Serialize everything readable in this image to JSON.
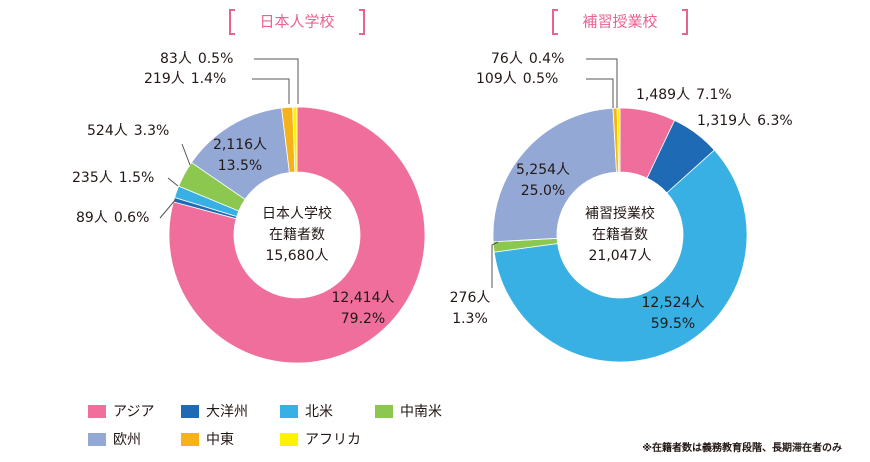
{
  "chart_data": [
    {
      "type": "pie",
      "title": "日本人学校",
      "center_label": [
        "日本人学校",
        "在籍者数",
        "15,680人"
      ],
      "categories": [
        "アジア",
        "大洋州",
        "北米",
        "中南米",
        "欧州",
        "中東",
        "アフリカ"
      ],
      "colors": [
        "#f06e9b",
        "#1e6ab4",
        "#38b0e4",
        "#8cc850",
        "#94a8d6",
        "#f5b21a",
        "#fff200"
      ],
      "values": [
        12414,
        89,
        235,
        524,
        2116,
        219,
        83
      ],
      "value_labels": [
        "12,414人",
        "89人",
        "235人",
        "524人",
        "2,116人",
        "219人",
        "83人"
      ],
      "percentages": [
        79.2,
        0.6,
        1.5,
        3.3,
        13.5,
        1.4,
        0.5
      ],
      "percentage_labels": [
        "79.2%",
        "0.6%",
        "1.5%",
        "3.3%",
        "13.5%",
        "1.4%",
        "0.5%"
      ]
    },
    {
      "type": "pie",
      "title": "補習授業校",
      "center_label": [
        "補習授業校",
        "在籍者数",
        "21,047人"
      ],
      "categories": [
        "アジア",
        "大洋州",
        "北米",
        "中南米",
        "欧州",
        "中東",
        "アフリカ"
      ],
      "colors": [
        "#f06e9b",
        "#1e6ab4",
        "#38b0e4",
        "#8cc850",
        "#94a8d6",
        "#f5b21a",
        "#fff200"
      ],
      "values": [
        1489,
        1319,
        12524,
        276,
        5254,
        109,
        76
      ],
      "value_labels": [
        "1,489人",
        "1,319人",
        "12,524人",
        "276人",
        "5,254人",
        "109人",
        "76人"
      ],
      "percentages": [
        7.1,
        6.3,
        59.5,
        1.3,
        25.0,
        0.5,
        0.4
      ],
      "percentage_labels": [
        "7.1%",
        "6.3%",
        "59.5%",
        "1.3%",
        "25.0%",
        "0.5%",
        "0.4%"
      ]
    }
  ],
  "note": "※在籍者数は義務教育段階、長期滞在者のみ"
}
